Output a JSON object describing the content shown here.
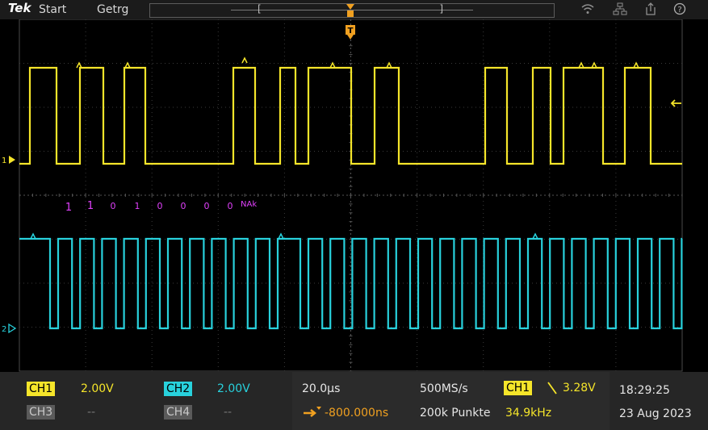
{
  "app": {
    "logo": "Tek",
    "menu": {
      "start": "Start",
      "trigger": "Getrg"
    }
  },
  "colors": {
    "ch1": "#f5e52a",
    "ch2": "#28d1dc",
    "decode": "#e040fb",
    "trigger": "#f0a020"
  },
  "icons": [
    "wifi-icon",
    "network-icon",
    "export-icon",
    "help-icon"
  ],
  "decode": {
    "bits": [
      "1",
      "1",
      "0",
      "1",
      "0",
      "0",
      "0",
      "0"
    ],
    "ack": "NAk"
  },
  "markers": {
    "ch1": "1",
    "ch2": "2"
  },
  "channels": {
    "ch1": {
      "label": "CH1",
      "scale": "2.00V"
    },
    "ch2": {
      "label": "CH2",
      "scale": "2.00V"
    },
    "ch3": {
      "label": "CH3",
      "scale": "--"
    },
    "ch4": {
      "label": "CH4",
      "scale": "--"
    }
  },
  "horizontal": {
    "timebase": "20.0µs",
    "sample_rate": "500MS/s",
    "position": "-800.000ns",
    "record_length": "200k Punkte"
  },
  "trigger": {
    "source": "CH1",
    "slope": "rising",
    "level": "3.28V",
    "frequency": "34.9kHz"
  },
  "clock": {
    "time": "18:29:25",
    "date": "23 Aug 2023"
  }
}
